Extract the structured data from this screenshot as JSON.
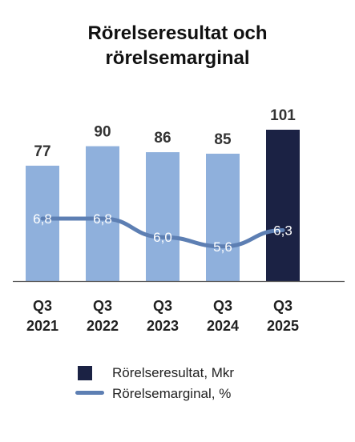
{
  "title_lines": [
    "Rörelseresultat och",
    "rörelsemarginal"
  ],
  "colors": {
    "bar": "#8fb0dc",
    "bar_highlight": "#1b2244",
    "line": "#5d7fb3",
    "value_text": "#333333",
    "margin_text": "#ffffff",
    "axis": "#555555"
  },
  "chart_data": {
    "type": "bar",
    "title": "Rörelseresultat och rörelsemarginal",
    "categories": [
      [
        "Q3",
        "2021"
      ],
      [
        "Q3",
        "2022"
      ],
      [
        "Q3",
        "2023"
      ],
      [
        "Q3",
        "2024"
      ],
      [
        "Q3",
        "2025"
      ]
    ],
    "series": [
      {
        "name": "Rörelseresultat, Mkr",
        "type": "bar",
        "values": [
          77,
          90,
          86,
          85,
          101
        ],
        "labels": [
          "77",
          "90",
          "86",
          "85",
          "101"
        ]
      },
      {
        "name": "Rörelsemarginal, %",
        "type": "line",
        "values": [
          6.8,
          6.8,
          6.0,
          5.6,
          6.3
        ],
        "labels": [
          "6,8",
          "6,8",
          "6,0",
          "5,6",
          "6,3"
        ]
      }
    ],
    "highlight_index": 4,
    "ylim": [
      0,
      101
    ],
    "grid": false,
    "legend_position": "bottom"
  },
  "legend": [
    {
      "label": "Rörelseresultat, Mkr",
      "kind": "box"
    },
    {
      "label": "Rörelsemarginal, %",
      "kind": "line"
    }
  ]
}
